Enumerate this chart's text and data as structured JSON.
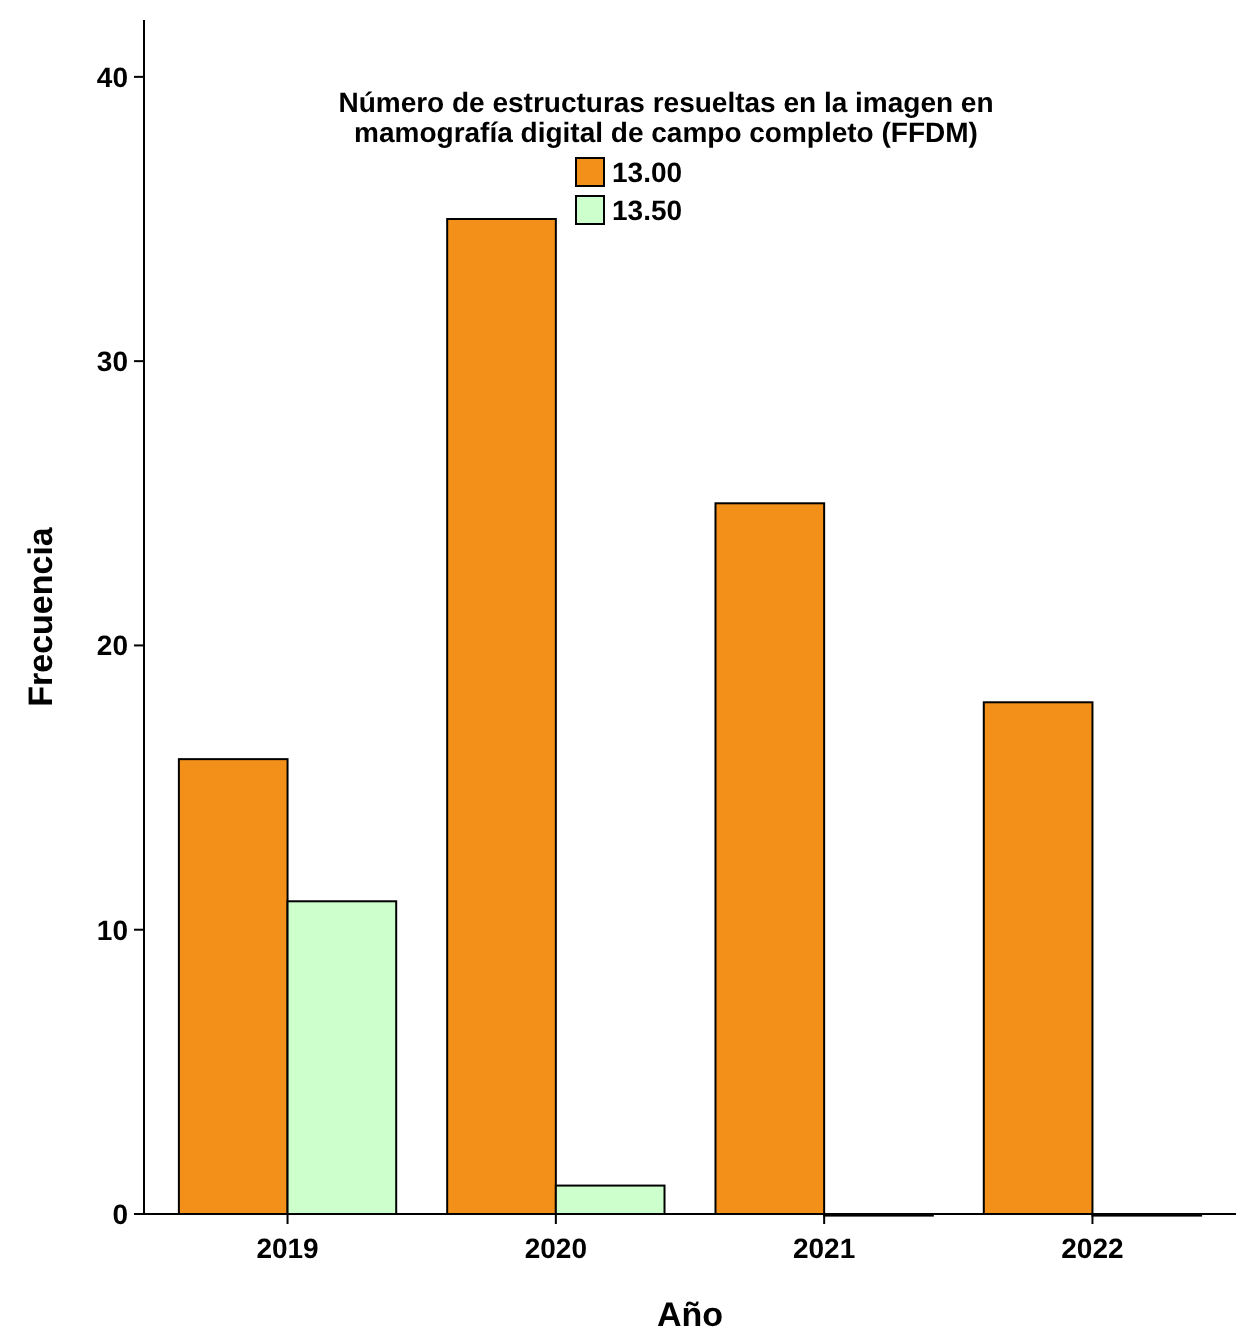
{
  "chart_data": {
    "type": "bar",
    "xlabel": "Año",
    "ylabel": "Frecuencia",
    "legend_title": "Número de estructuras resueltas en la imagen en mamografía digital de campo completo (FFDM)",
    "categories": [
      "2019",
      "2020",
      "2021",
      "2022"
    ],
    "series": [
      {
        "name": "13.00",
        "color": "#f39019",
        "values": [
          16,
          35,
          25,
          18
        ]
      },
      {
        "name": "13.50",
        "color": "#ccffcc",
        "values": [
          11,
          1,
          0,
          0
        ]
      }
    ],
    "ylim": [
      0,
      42
    ],
    "yticks": [
      0,
      10,
      20,
      30,
      40
    ],
    "grid": false,
    "legend": "top"
  }
}
